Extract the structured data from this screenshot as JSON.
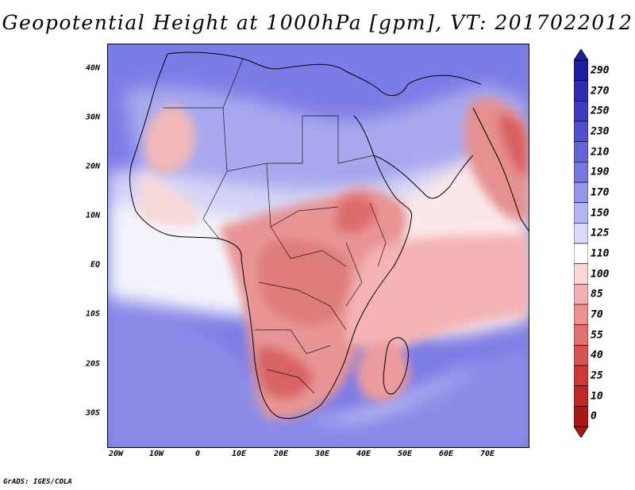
{
  "title": "Geopotential Height at 1000hPa [gpm], VT: 2017022012",
  "map": {
    "lat_labels": [
      "40N",
      "30N",
      "20N",
      "10N",
      "EQ",
      "10S",
      "20S",
      "30S"
    ],
    "lon_labels": [
      "20W",
      "10W",
      "0",
      "10E",
      "20E",
      "30E",
      "40E",
      "50E",
      "60E",
      "70E"
    ],
    "lat_values": [
      40,
      30,
      20,
      10,
      0,
      -10,
      -20,
      -30
    ],
    "lon_values": [
      -20,
      -10,
      0,
      10,
      20,
      30,
      40,
      50,
      60,
      70
    ],
    "extent": {
      "lon_min": -22,
      "lon_max": 79,
      "lat_min": -36.5,
      "lat_max": 44.5
    }
  },
  "legend": {
    "levels": [
      "290",
      "270",
      "250",
      "230",
      "210",
      "190",
      "170",
      "150",
      "125",
      "110",
      "100",
      "85",
      "70",
      "55",
      "40",
      "25",
      "10",
      "0"
    ],
    "colors": [
      "#1e1ea0",
      "#2c2cb4",
      "#3c3cc4",
      "#5050d0",
      "#6464da",
      "#7878e4",
      "#9494ec",
      "#b4b4f2",
      "#d8d8f8",
      "#ffffff",
      "#fad8d8",
      "#f4b0b0",
      "#ec9090",
      "#e47070",
      "#dc5050",
      "#d03838",
      "#c02828",
      "#a81818"
    ]
  },
  "credit": "GrADS: IGES/COLA"
}
